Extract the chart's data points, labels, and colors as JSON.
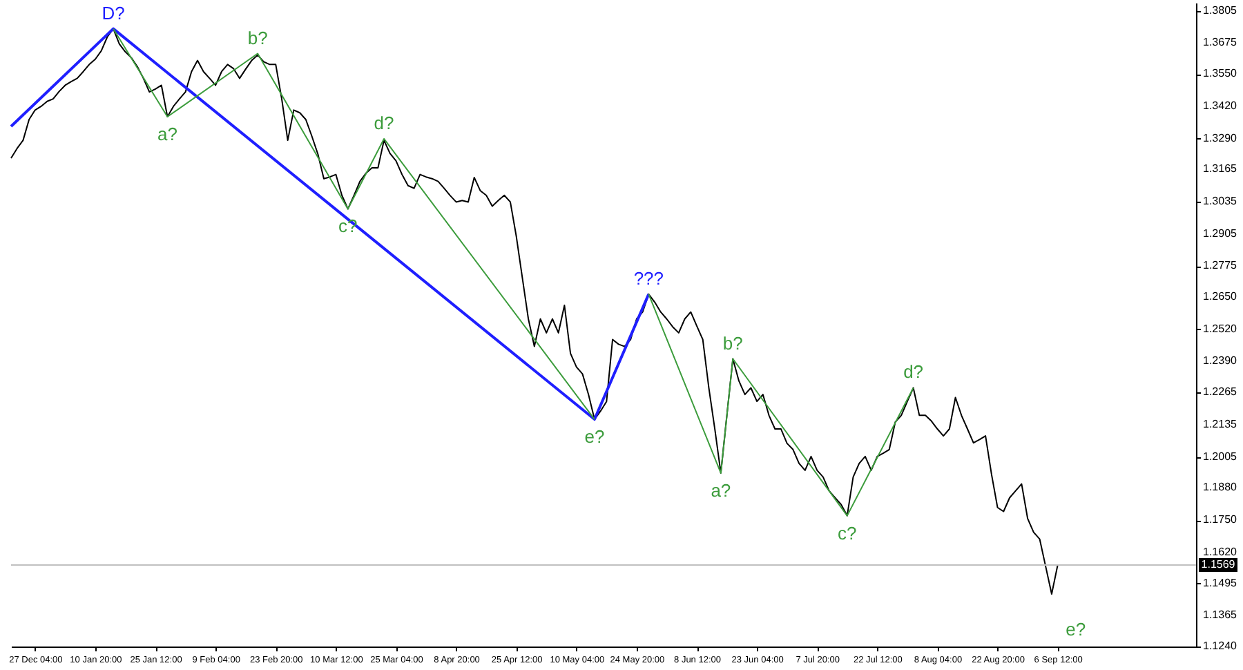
{
  "chart_data": {
    "type": "line",
    "categories": [
      null,
      null,
      null,
      null,
      "27 Dec 04:00",
      null,
      null,
      null,
      null,
      null,
      null,
      null,
      null,
      null,
      "10 Jan 20:00",
      null,
      null,
      null,
      null,
      null,
      null,
      null,
      null,
      null,
      "25 Jan 12:00",
      null,
      null,
      null,
      null,
      null,
      null,
      null,
      null,
      null,
      "9 Feb 04:00",
      null,
      null,
      null,
      null,
      null,
      null,
      null,
      null,
      null,
      "23 Feb 20:00",
      null,
      null,
      null,
      null,
      null,
      null,
      null,
      null,
      null,
      "10 Mar 12:00",
      null,
      null,
      null,
      null,
      null,
      null,
      null,
      null,
      null,
      "25 Mar 04:00",
      null,
      null,
      null,
      null,
      null,
      null,
      null,
      null,
      null,
      "8 Apr 20:00",
      null,
      null,
      null,
      null,
      null,
      null,
      null,
      null,
      null,
      "25 Apr 12:00",
      null,
      null,
      null,
      null,
      null,
      null,
      null,
      null,
      null,
      "10 May 04:00",
      null,
      null,
      null,
      null,
      null,
      null,
      null,
      null,
      null,
      "24 May 20:00",
      null,
      null,
      null,
      null,
      null,
      null,
      null,
      null,
      null,
      "8 Jun 12:00",
      null,
      null,
      null,
      null,
      null,
      null,
      null,
      null,
      null,
      "23 Jun 04:00",
      null,
      null,
      null,
      null,
      null,
      null,
      null,
      null,
      null,
      "7 Jul 20:00",
      null,
      null,
      null,
      null,
      null,
      null,
      null,
      null,
      null,
      "22 Jul 12:00",
      null,
      null,
      null,
      null,
      null,
      null,
      null,
      null,
      null,
      "8 Aug 04:00",
      null,
      null,
      null,
      null,
      null,
      null,
      null,
      null,
      null,
      "22 Aug 20:00",
      null,
      null,
      null,
      null,
      null,
      null,
      null,
      null,
      null,
      "6 Sep 12:00",
      null,
      null,
      null,
      null,
      null,
      null,
      null,
      null,
      null,
      null,
      null,
      null,
      null,
      null,
      null,
      null,
      null,
      null,
      null,
      null,
      null,
      null,
      null
    ],
    "ylim": [
      1.124,
      1.3838
    ],
    "yticks": [
      {
        "value": 1.124,
        "label": "1.1240"
      },
      1.1365,
      1.1495,
      {
        "value": 1.162,
        "label": "1.1620"
      },
      {
        "value": 1.175,
        "label": "1.1750"
      },
      {
        "value": 1.188,
        "label": "1.1880"
      },
      1.2005,
      1.2135,
      1.2265,
      {
        "value": 1.239,
        "label": "1.2390"
      },
      {
        "value": 1.252,
        "label": "1.2520"
      },
      {
        "value": 1.265,
        "label": "1.2650"
      },
      1.2775,
      1.2905,
      1.3035,
      1.3165,
      {
        "value": 1.329,
        "label": "1.3290"
      },
      {
        "value": 1.342,
        "label": "1.3420"
      },
      {
        "value": 1.355,
        "label": "1.3550"
      },
      1.3675,
      1.3805
    ],
    "series": [
      {
        "color": "#000000",
        "values": [
          1.3211,
          1.325,
          1.3283,
          1.3367,
          1.3405,
          1.342,
          1.344,
          1.345,
          1.348,
          1.3505,
          1.352,
          1.3533,
          1.356,
          1.3589,
          1.361,
          1.3644,
          1.37,
          1.3733,
          1.3672,
          1.364,
          1.3616,
          1.358,
          1.3533,
          1.3478,
          1.349,
          1.3505,
          1.3378,
          1.342,
          1.345,
          1.3478,
          1.356,
          1.3605,
          1.356,
          1.3533,
          1.3505,
          1.356,
          1.3589,
          1.3572,
          1.3533,
          1.357,
          1.3605,
          1.3627,
          1.36,
          1.3589,
          1.3589,
          1.345,
          1.3283,
          1.3405,
          1.3394,
          1.3367,
          1.33,
          1.3228,
          1.3128,
          1.3135,
          1.3145,
          1.3061,
          1.3006,
          1.306,
          1.3117,
          1.315,
          1.3172,
          1.3172,
          1.3283,
          1.323,
          1.32,
          1.3145,
          1.31,
          1.3089,
          1.3145,
          1.3135,
          1.3128,
          1.3117,
          1.3089,
          1.306,
          1.3034,
          1.304,
          1.3034,
          1.3133,
          1.308,
          1.3061,
          1.3017,
          1.304,
          1.3061,
          1.3034,
          1.2895,
          1.2728,
          1.2562,
          1.2451,
          1.2562,
          1.2506,
          1.2562,
          1.2506,
          1.2617,
          1.2423,
          1.2368,
          1.234,
          1.2257,
          1.2157,
          1.219,
          1.2229,
          1.2479,
          1.246,
          1.2451,
          1.2479,
          1.2562,
          1.259,
          1.2662,
          1.263,
          1.259,
          1.2562,
          1.253,
          1.2506,
          1.2562,
          1.259,
          1.2534,
          1.2479,
          1.2284,
          1.2118,
          1.194,
          1.2173,
          1.2401,
          1.2312,
          1.2257,
          1.2284,
          1.2229,
          1.2257,
          1.2173,
          1.2118,
          1.2118,
          1.206,
          1.2035,
          1.1979,
          1.1951,
          1.2007,
          1.1951,
          1.1924,
          1.1868,
          1.184,
          1.1813,
          1.1768,
          1.1924,
          1.1979,
          1.2007,
          1.1951,
          1.2007,
          1.202,
          1.2035,
          1.2146,
          1.2173,
          1.2229,
          1.2284,
          1.2173,
          1.2173,
          1.215,
          1.2118,
          1.209,
          1.2118,
          1.2245,
          1.2173,
          1.2118,
          1.2062,
          1.2075,
          1.209,
          1.1935,
          1.1801,
          1.1785,
          1.184,
          1.1868,
          1.1896,
          1.1757,
          1.1701,
          1.1674,
          1.1563,
          1.1452,
          1.1569,
          null,
          null,
          null,
          null,
          null,
          null,
          null,
          null,
          null,
          null,
          null,
          null,
          null,
          null,
          null,
          null,
          null,
          null,
          null,
          null,
          null,
          null,
          null
        ]
      },
      {
        "color": "#1f1fff",
        "values": [
          1.3339,
          null,
          null,
          null,
          null,
          null,
          null,
          null,
          null,
          null,
          null,
          null,
          null,
          null,
          null,
          null,
          null,
          1.3733,
          null,
          null,
          null,
          null,
          null,
          null,
          null,
          null,
          null,
          null,
          null,
          null,
          null,
          null,
          null,
          null,
          null,
          null,
          null,
          null,
          null,
          null,
          null,
          null,
          null,
          null,
          null,
          null,
          null,
          null,
          null,
          null,
          null,
          null,
          null,
          null,
          null,
          null,
          null,
          null,
          null,
          null,
          null,
          null,
          null,
          null,
          null,
          null,
          null,
          null,
          null,
          null,
          null,
          null,
          null,
          null,
          null,
          null,
          null,
          null,
          null,
          null,
          null,
          null,
          null,
          null,
          null,
          null,
          null,
          null,
          null,
          null,
          null,
          null,
          null,
          null,
          null,
          null,
          null,
          1.2157,
          null,
          null,
          null,
          null,
          null,
          null,
          null,
          null,
          1.2662,
          null,
          null,
          null,
          null,
          null,
          null,
          null,
          null,
          null,
          null,
          null,
          null,
          null,
          null,
          null,
          null,
          null,
          null,
          null,
          null,
          null,
          null,
          null,
          null,
          null,
          null,
          null,
          null,
          null,
          null,
          null,
          null,
          null,
          null,
          null,
          null,
          null,
          null,
          null,
          null,
          null,
          null,
          null,
          null,
          null,
          null,
          null,
          null,
          null,
          null,
          null,
          null,
          null,
          null,
          null,
          null,
          null,
          null,
          null,
          null,
          null,
          null,
          null,
          null,
          null,
          null,
          null,
          null,
          null,
          null,
          null,
          null,
          null,
          null,
          null,
          null,
          null,
          null,
          null,
          null,
          null,
          null,
          null,
          null,
          null,
          null,
          null,
          null,
          null,
          null,
          null
        ]
      },
      {
        "color": "#3c9c3c",
        "values": [
          null,
          null,
          null,
          null,
          null,
          null,
          null,
          null,
          null,
          null,
          null,
          null,
          null,
          null,
          null,
          null,
          null,
          1.3733,
          null,
          null,
          null,
          null,
          null,
          null,
          null,
          null,
          1.3378,
          null,
          null,
          null,
          null,
          null,
          null,
          null,
          null,
          null,
          null,
          null,
          null,
          null,
          null,
          1.3633,
          null,
          null,
          null,
          null,
          null,
          null,
          null,
          null,
          null,
          null,
          null,
          null,
          null,
          null,
          1.3006,
          null,
          null,
          null,
          null,
          null,
          1.3289,
          null,
          null,
          null,
          null,
          null,
          null,
          null,
          null,
          null,
          null,
          null,
          null,
          null,
          null,
          null,
          null,
          null,
          null,
          null,
          null,
          null,
          null,
          null,
          null,
          null,
          null,
          null,
          null,
          null,
          null,
          null,
          null,
          null,
          null,
          1.2157,
          null,
          null,
          null,
          null,
          null,
          null,
          null,
          null,
          null,
          null,
          null,
          null,
          null,
          null,
          null,
          null,
          null,
          null,
          null,
          null,
          null,
          null,
          null,
          null,
          null,
          null,
          null,
          null,
          null,
          null,
          null,
          null,
          null,
          null,
          null,
          null,
          null,
          null,
          null,
          null,
          null,
          null,
          null,
          null,
          null,
          null,
          null,
          null,
          null,
          null,
          null,
          null,
          null,
          null,
          null,
          null,
          null,
          null,
          null,
          null,
          null,
          null,
          null,
          null,
          null,
          null,
          null,
          null,
          null,
          null,
          null,
          null,
          null,
          null,
          null,
          null,
          null,
          null,
          null,
          null,
          null,
          null,
          null,
          null,
          null,
          null,
          null,
          null,
          null,
          null,
          null,
          null,
          null,
          null,
          null,
          null,
          null,
          null,
          null,
          null
        ]
      },
      {
        "color": "#3c9c3c",
        "values": [
          null,
          null,
          null,
          null,
          null,
          null,
          null,
          null,
          null,
          null,
          null,
          null,
          null,
          null,
          null,
          null,
          null,
          null,
          null,
          null,
          null,
          null,
          null,
          null,
          null,
          null,
          null,
          null,
          null,
          null,
          null,
          null,
          null,
          null,
          null,
          null,
          null,
          null,
          null,
          null,
          null,
          null,
          null,
          null,
          null,
          null,
          null,
          null,
          null,
          null,
          null,
          null,
          null,
          null,
          null,
          null,
          null,
          null,
          null,
          null,
          null,
          null,
          null,
          null,
          null,
          null,
          null,
          null,
          null,
          null,
          null,
          null,
          null,
          null,
          null,
          null,
          null,
          null,
          null,
          null,
          null,
          null,
          null,
          null,
          null,
          null,
          null,
          null,
          null,
          null,
          null,
          null,
          null,
          null,
          null,
          null,
          null,
          null,
          null,
          null,
          null,
          null,
          null,
          null,
          null,
          null,
          1.2662,
          null,
          null,
          null,
          null,
          null,
          null,
          null,
          null,
          null,
          null,
          null,
          1.194,
          null,
          1.2401,
          null,
          null,
          null,
          null,
          null,
          null,
          null,
          null,
          null,
          null,
          null,
          null,
          null,
          null,
          null,
          null,
          null,
          null,
          1.1768,
          null,
          null,
          null,
          null,
          null,
          null,
          null,
          null,
          null,
          null,
          1.2284,
          null,
          null,
          null,
          null,
          null,
          null,
          null,
          null,
          null,
          null,
          null,
          null,
          null,
          null,
          null,
          null,
          null,
          null,
          null,
          null,
          null,
          null,
          null,
          null,
          null,
          null,
          null,
          null,
          null,
          null,
          null,
          null,
          null,
          null,
          null,
          null,
          null,
          null,
          null,
          null,
          null,
          null,
          null,
          null,
          null,
          null,
          null
        ]
      }
    ],
    "annotations": [
      {
        "text": "D?",
        "y": 1.3733
      },
      {
        "text": "a?",
        "y": 1.3378
      },
      {
        "text": "b?",
        "y": 1.3633
      },
      {
        "text": "c?",
        "y": 1.3006
      },
      {
        "text": "d?",
        "y": 1.3289
      },
      {
        "text": "e?",
        "y": 1.2157
      },
      {
        "text": "???",
        "y": 1.2662
      },
      {
        "text": "a?",
        "y": 1.194
      },
      {
        "text": "b?",
        "y": 1.2401
      },
      {
        "text": "c?",
        "y": 1.1768
      },
      {
        "text": "d?",
        "y": 1.2284
      },
      "e?"
    ],
    "ref_lines": [
      {
        "axis": "y",
        "value": 1.1569,
        "label": "1.1569",
        "color": "#c0c0c0"
      }
    ]
  }
}
